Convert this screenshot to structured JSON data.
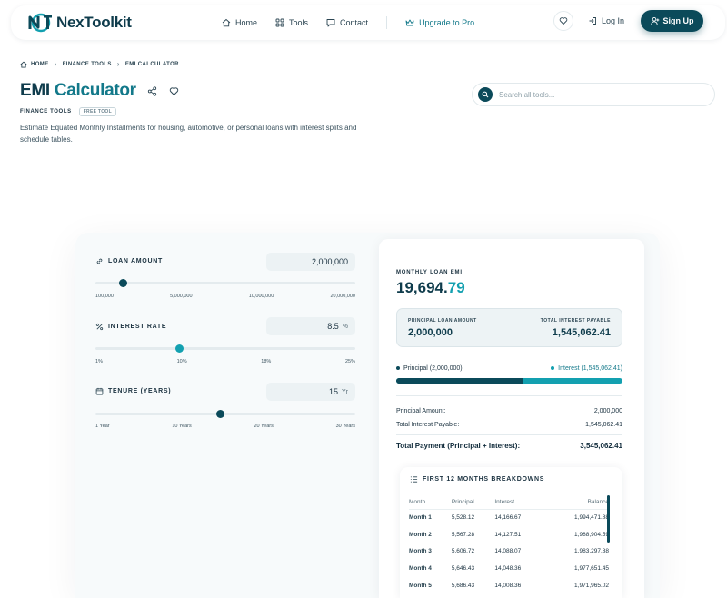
{
  "header": {
    "logo_text": "NexToolkit",
    "nav": [
      {
        "label": "Home",
        "icon": "home-icon"
      },
      {
        "label": "Tools",
        "icon": "grid-icon"
      },
      {
        "label": "Contact",
        "icon": "chat-icon"
      }
    ],
    "upgrade_label": "Upgrade to Pro",
    "login_label": "Log In",
    "signup_label": "Sign Up"
  },
  "breadcrumb": [
    "HOME",
    "FINANCE TOOLS",
    "EMI CALCULATOR"
  ],
  "page": {
    "title_main": "EMI ",
    "title_highlight": "Calculator",
    "category": "FINANCE TOOLS",
    "badge": "FREE TOOL",
    "description": "Estimate Equated Monthly Installments for housing, automotive, or personal loans with interest splits and schedule tables."
  },
  "search": {
    "placeholder": "Search all tools..."
  },
  "calculator": {
    "loan": {
      "label": "LOAN AMOUNT",
      "value": "2,000,000",
      "unit": "",
      "slider_fraction": 0.105,
      "ticks": [
        "100,000",
        "5,000,000",
        "10,000,000",
        "20,000,000"
      ]
    },
    "rate": {
      "label": "INTEREST RATE",
      "value": "8.5",
      "unit": "%",
      "slider_fraction": 0.32,
      "ticks": [
        "1%",
        "10%",
        "18%",
        "25%"
      ]
    },
    "tenure": {
      "label": "TENURE (YEARS)",
      "value": "15",
      "unit": "Yr",
      "slider_fraction": 0.48,
      "ticks": [
        "1 Year",
        "10 Years",
        "20 Years",
        "30 Years"
      ]
    }
  },
  "result": {
    "emi_label": "MONTHLY LOAN EMI",
    "emi_int": "19,694.",
    "emi_dec": "79",
    "principal_caption": "PRINCIPAL LOAN AMOUNT",
    "principal_value": "2,000,000",
    "interest_caption": "TOTAL INTEREST PAYABLE",
    "interest_value": "1,545,062.41",
    "legend_principal": "Principal (2,000,000)",
    "legend_interest": "Interest (1,545,062.41)",
    "principal_share": 0.564,
    "rows": [
      {
        "label": "Principal Amount:",
        "value": "2,000,000"
      },
      {
        "label": "Total Interest Payable:",
        "value": "1,545,062.41"
      }
    ],
    "total_label": "Total Payment (Principal + Interest):",
    "total_value": "3,545,062.41"
  },
  "breakdown": {
    "title": "FIRST 12 MONTHS BREAKDOWNS",
    "headers": [
      "Month",
      "Principal",
      "Interest",
      "Balance"
    ],
    "rows": [
      [
        "Month 1",
        "5,528.12",
        "14,166.67",
        "1,994,471.88"
      ],
      [
        "Month 2",
        "5,567.28",
        "14,127.51",
        "1,988,904.59"
      ],
      [
        "Month 3",
        "5,606.72",
        "14,088.07",
        "1,983,297.88"
      ],
      [
        "Month 4",
        "5,646.43",
        "14,048.36",
        "1,977,651.45"
      ],
      [
        "Month 5",
        "5,686.43",
        "14,008.36",
        "1,971,965.02"
      ]
    ]
  },
  "colors": {
    "brand_dark": "#0b4a5a",
    "accent_teal": "#13a0b0",
    "thumb_loan": "#0b4a5a",
    "thumb_rate": "#13a0b0",
    "thumb_tenure": "#0b4a5a"
  }
}
